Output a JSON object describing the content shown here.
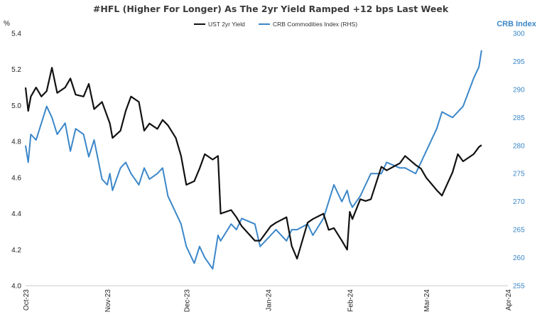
{
  "chart_data": {
    "type": "line",
    "title": "#HFL (Higher For Longer) As The 2yr Yield Ramped +12 bps Last Week",
    "ylabel": "%",
    "y2label": "CRB Index",
    "ylim": [
      4.0,
      5.4
    ],
    "y2lim": [
      255,
      300
    ],
    "yticks": [
      "4.0",
      "4.2",
      "4.4",
      "4.6",
      "4.8",
      "5.0",
      "5.2",
      "5.4"
    ],
    "y2ticks": [
      "255",
      "260",
      "265",
      "270",
      "275",
      "280",
      "285",
      "290",
      "295",
      "300"
    ],
    "xlim": [
      "2023-10-01",
      "2024-04-01"
    ],
    "xticks": [
      {
        "label": "Oct-23",
        "date": "2023-10-01"
      },
      {
        "label": "Nov-23",
        "date": "2023-11-01"
      },
      {
        "label": "Dec-23",
        "date": "2023-12-01"
      },
      {
        "label": "Jan-24",
        "date": "2024-01-01"
      },
      {
        "label": "Feb-24",
        "date": "2024-02-01"
      },
      {
        "label": "Mar-24",
        "date": "2024-03-01"
      },
      {
        "label": "Apr-24",
        "date": "2024-04-01"
      }
    ],
    "grid": false,
    "legend": "top-center",
    "series": [
      {
        "name": "UST 2yr Yield",
        "axis": "left",
        "color": "#111111",
        "x": [
          "2023-10-01",
          "2023-10-02",
          "2023-10-03",
          "2023-10-05",
          "2023-10-07",
          "2023-10-09",
          "2023-10-11",
          "2023-10-13",
          "2023-10-16",
          "2023-10-18",
          "2023-10-20",
          "2023-10-23",
          "2023-10-25",
          "2023-10-27",
          "2023-10-30",
          "2023-11-01",
          "2023-11-02",
          "2023-11-03",
          "2023-11-06",
          "2023-11-08",
          "2023-11-10",
          "2023-11-13",
          "2023-11-15",
          "2023-11-17",
          "2023-11-20",
          "2023-11-22",
          "2023-11-24",
          "2023-11-27",
          "2023-11-29",
          "2023-12-01",
          "2023-12-04",
          "2023-12-06",
          "2023-12-08",
          "2023-12-11",
          "2023-12-13",
          "2023-12-14",
          "2023-12-18",
          "2023-12-20",
          "2023-12-22",
          "2023-12-27",
          "2023-12-29",
          "2024-01-02",
          "2024-01-04",
          "2024-01-08",
          "2024-01-10",
          "2024-01-12",
          "2024-01-16",
          "2024-01-18",
          "2024-01-22",
          "2024-01-24",
          "2024-01-26",
          "2024-01-29",
          "2024-01-31",
          "2024-02-01",
          "2024-02-02",
          "2024-02-05",
          "2024-02-07",
          "2024-02-09",
          "2024-02-13",
          "2024-02-15",
          "2024-02-20",
          "2024-02-22",
          "2024-02-26",
          "2024-02-28",
          "2024-03-01",
          "2024-03-05",
          "2024-03-07",
          "2024-03-11",
          "2024-03-13",
          "2024-03-15",
          "2024-03-19",
          "2024-03-21",
          "2024-03-22"
        ],
        "y": [
          5.1,
          4.97,
          5.05,
          5.1,
          5.05,
          5.08,
          5.21,
          5.07,
          5.1,
          5.15,
          5.06,
          5.05,
          5.12,
          4.98,
          5.02,
          4.94,
          4.9,
          4.82,
          4.86,
          4.97,
          5.05,
          5.02,
          4.86,
          4.9,
          4.87,
          4.92,
          4.89,
          4.82,
          4.72,
          4.56,
          4.58,
          4.65,
          4.73,
          4.7,
          4.72,
          4.4,
          4.42,
          4.38,
          4.33,
          4.25,
          4.25,
          4.33,
          4.35,
          4.38,
          4.22,
          4.15,
          4.35,
          4.37,
          4.4,
          4.31,
          4.32,
          4.25,
          4.2,
          4.41,
          4.37,
          4.48,
          4.47,
          4.48,
          4.66,
          4.64,
          4.68,
          4.72,
          4.67,
          4.65,
          4.6,
          4.53,
          4.5,
          4.63,
          4.73,
          4.69,
          4.73,
          4.77,
          4.78
        ]
      },
      {
        "name": "CRB Commodities Index (RHS)",
        "axis": "right",
        "color": "#3b87c9",
        "x": [
          "2023-10-01",
          "2023-10-02",
          "2023-10-03",
          "2023-10-05",
          "2023-10-07",
          "2023-10-09",
          "2023-10-11",
          "2023-10-13",
          "2023-10-16",
          "2023-10-18",
          "2023-10-20",
          "2023-10-23",
          "2023-10-25",
          "2023-10-27",
          "2023-10-30",
          "2023-11-01",
          "2023-11-02",
          "2023-11-03",
          "2023-11-06",
          "2023-11-08",
          "2023-11-10",
          "2023-11-13",
          "2023-11-15",
          "2023-11-17",
          "2023-11-20",
          "2023-11-22",
          "2023-11-24",
          "2023-11-27",
          "2023-11-29",
          "2023-12-01",
          "2023-12-04",
          "2023-12-06",
          "2023-12-08",
          "2023-12-11",
          "2023-12-13",
          "2023-12-14",
          "2023-12-18",
          "2023-12-20",
          "2023-12-22",
          "2023-12-27",
          "2023-12-29",
          "2024-01-02",
          "2024-01-04",
          "2024-01-08",
          "2024-01-10",
          "2024-01-12",
          "2024-01-16",
          "2024-01-18",
          "2024-01-22",
          "2024-01-24",
          "2024-01-26",
          "2024-01-29",
          "2024-01-31",
          "2024-02-01",
          "2024-02-02",
          "2024-02-05",
          "2024-02-07",
          "2024-02-09",
          "2024-02-13",
          "2024-02-15",
          "2024-02-20",
          "2024-02-22",
          "2024-02-26",
          "2024-02-28",
          "2024-03-01",
          "2024-03-05",
          "2024-03-07",
          "2024-03-11",
          "2024-03-13",
          "2024-03-15",
          "2024-03-19",
          "2024-03-21",
          "2024-03-22"
        ],
        "y": [
          280,
          277,
          282,
          281,
          284,
          287,
          285,
          282,
          284,
          279,
          283,
          282,
          278,
          281,
          274,
          273,
          275,
          272,
          276,
          277,
          275,
          273,
          276,
          274,
          275,
          276,
          271,
          268,
          266,
          262,
          259,
          262,
          260,
          258,
          264,
          263,
          266,
          265,
          267,
          266,
          262,
          264,
          265,
          263,
          265,
          265,
          266,
          264,
          267,
          270,
          273,
          270,
          272,
          270,
          269,
          271,
          273,
          275,
          275,
          277,
          276,
          276,
          275,
          277,
          279,
          283,
          286,
          285,
          286,
          287,
          292,
          294,
          297
        ]
      }
    ]
  }
}
